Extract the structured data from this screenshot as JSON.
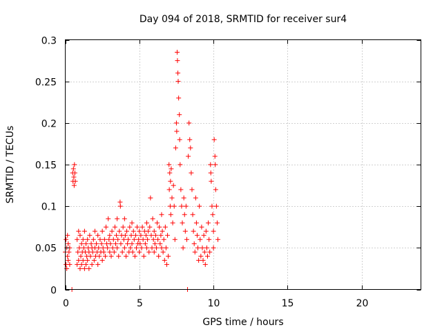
{
  "chart_data": {
    "type": "scatter",
    "title": "Day 094 of 2018, SRMTID for receiver sur4",
    "xlabel": "GPS time / hours",
    "ylabel": "SRMTID / TECUs",
    "xlim": [
      0,
      24
    ],
    "ylim": [
      0,
      0.3
    ],
    "xticks": [
      0,
      5,
      10,
      15,
      20
    ],
    "xtick_labels": [
      "0",
      "5",
      "10",
      "15",
      "20"
    ],
    "yticks": [
      0,
      0.05,
      0.1,
      0.15,
      0.2,
      0.25,
      0.3
    ],
    "ytick_labels": [
      "0",
      "0.05",
      "0.1",
      "0.15",
      "0.2",
      "0.25",
      "0.3"
    ],
    "grid": true,
    "marker": "+",
    "color": "#ff0000",
    "series": [
      {
        "name": "SRMTID",
        "points": [
          [
            0.0,
            0.045
          ],
          [
            0.05,
            0.03
          ],
          [
            0.05,
            0.06
          ],
          [
            0.1,
            0.025
          ],
          [
            0.1,
            0.05
          ],
          [
            0.15,
            0.04
          ],
          [
            0.15,
            0.065
          ],
          [
            0.2,
            0.035
          ],
          [
            0.2,
            0.055
          ],
          [
            0.25,
            0.045
          ],
          [
            0.3,
            0.05
          ],
          [
            0.3,
            0.03
          ],
          [
            0.45,
            0.0
          ],
          [
            0.5,
            0.14
          ],
          [
            0.52,
            0.13
          ],
          [
            0.55,
            0.145
          ],
          [
            0.58,
            0.135
          ],
          [
            0.6,
            0.125
          ],
          [
            0.62,
            0.15
          ],
          [
            0.65,
            0.14
          ],
          [
            0.68,
            0.13
          ],
          [
            0.8,
            0.03
          ],
          [
            0.8,
            0.06
          ],
          [
            0.85,
            0.045
          ],
          [
            0.9,
            0.07
          ],
          [
            0.9,
            0.035
          ],
          [
            0.95,
            0.05
          ],
          [
            1.0,
            0.065
          ],
          [
            1.0,
            0.025
          ],
          [
            1.05,
            0.04
          ],
          [
            1.1,
            0.055
          ],
          [
            1.1,
            0.03
          ],
          [
            1.15,
            0.045
          ],
          [
            1.2,
            0.035
          ],
          [
            1.2,
            0.06
          ],
          [
            1.25,
            0.05
          ],
          [
            1.3,
            0.025
          ],
          [
            1.3,
            0.07
          ],
          [
            1.35,
            0.045
          ],
          [
            1.4,
            0.03
          ],
          [
            1.4,
            0.055
          ],
          [
            1.45,
            0.04
          ],
          [
            1.5,
            0.06
          ],
          [
            1.5,
            0.035
          ],
          [
            1.55,
            0.05
          ],
          [
            1.6,
            0.045
          ],
          [
            1.6,
            0.025
          ],
          [
            1.65,
            0.065
          ],
          [
            1.7,
            0.04
          ],
          [
            1.75,
            0.055
          ],
          [
            1.8,
            0.03
          ],
          [
            1.8,
            0.05
          ],
          [
            1.85,
            0.045
          ],
          [
            1.9,
            0.06
          ],
          [
            1.95,
            0.035
          ],
          [
            2.0,
            0.05
          ],
          [
            2.0,
            0.07
          ],
          [
            2.05,
            0.04
          ],
          [
            2.1,
            0.055
          ],
          [
            2.15,
            0.045
          ],
          [
            2.2,
            0.03
          ],
          [
            2.2,
            0.065
          ],
          [
            2.25,
            0.05
          ],
          [
            2.3,
            0.04
          ],
          [
            2.35,
            0.06
          ],
          [
            2.4,
            0.045
          ],
          [
            2.45,
            0.055
          ],
          [
            2.5,
            0.035
          ],
          [
            2.5,
            0.07
          ],
          [
            2.55,
            0.05
          ],
          [
            2.6,
            0.045
          ],
          [
            2.65,
            0.06
          ],
          [
            2.7,
            0.04
          ],
          [
            2.75,
            0.075
          ],
          [
            2.8,
            0.055
          ],
          [
            2.85,
            0.05
          ],
          [
            2.9,
            0.085
          ],
          [
            2.95,
            0.06
          ],
          [
            3.0,
            0.045
          ],
          [
            3.0,
            0.065
          ],
          [
            3.05,
            0.055
          ],
          [
            3.1,
            0.04
          ],
          [
            3.15,
            0.07
          ],
          [
            3.2,
            0.05
          ],
          [
            3.25,
            0.06
          ],
          [
            3.3,
            0.045
          ],
          [
            3.35,
            0.075
          ],
          [
            3.4,
            0.055
          ],
          [
            3.45,
            0.065
          ],
          [
            3.5,
            0.05
          ],
          [
            3.5,
            0.085
          ],
          [
            3.55,
            0.06
          ],
          [
            3.6,
            0.04
          ],
          [
            3.65,
            0.07
          ],
          [
            3.7,
            0.105
          ],
          [
            3.72,
            0.1
          ],
          [
            3.75,
            0.055
          ],
          [
            3.8,
            0.065
          ],
          [
            3.85,
            0.045
          ],
          [
            3.9,
            0.075
          ],
          [
            3.95,
            0.06
          ],
          [
            4.0,
            0.05
          ],
          [
            4.0,
            0.085
          ],
          [
            4.05,
            0.065
          ],
          [
            4.1,
            0.04
          ],
          [
            4.15,
            0.07
          ],
          [
            4.2,
            0.055
          ],
          [
            4.25,
            0.06
          ],
          [
            4.3,
            0.045
          ],
          [
            4.35,
            0.075
          ],
          [
            4.4,
            0.05
          ],
          [
            4.45,
            0.065
          ],
          [
            4.5,
            0.055
          ],
          [
            4.5,
            0.08
          ],
          [
            4.55,
            0.045
          ],
          [
            4.6,
            0.07
          ],
          [
            4.65,
            0.06
          ],
          [
            4.7,
            0.04
          ],
          [
            4.75,
            0.065
          ],
          [
            4.8,
            0.05
          ],
          [
            4.85,
            0.075
          ],
          [
            4.9,
            0.055
          ],
          [
            4.95,
            0.06
          ],
          [
            5.0,
            0.045
          ],
          [
            5.0,
            0.07
          ],
          [
            5.05,
            0.055
          ],
          [
            5.1,
            0.065
          ],
          [
            5.15,
            0.05
          ],
          [
            5.2,
            0.075
          ],
          [
            5.25,
            0.06
          ],
          [
            5.3,
            0.04
          ],
          [
            5.35,
            0.07
          ],
          [
            5.4,
            0.055
          ],
          [
            5.45,
            0.065
          ],
          [
            5.5,
            0.05
          ],
          [
            5.5,
            0.08
          ],
          [
            5.55,
            0.06
          ],
          [
            5.6,
            0.07
          ],
          [
            5.65,
            0.045
          ],
          [
            5.7,
            0.075
          ],
          [
            5.75,
            0.11
          ],
          [
            5.8,
            0.065
          ],
          [
            5.85,
            0.05
          ],
          [
            5.9,
            0.085
          ],
          [
            5.95,
            0.06
          ],
          [
            6.0,
            0.045
          ],
          [
            6.0,
            0.07
          ],
          [
            6.05,
            0.055
          ],
          [
            6.1,
            0.065
          ],
          [
            6.15,
            0.05
          ],
          [
            6.2,
            0.08
          ],
          [
            6.25,
            0.06
          ],
          [
            6.3,
            0.04
          ],
          [
            6.35,
            0.075
          ],
          [
            6.4,
            0.055
          ],
          [
            6.45,
            0.065
          ],
          [
            6.5,
            0.05
          ],
          [
            6.5,
            0.09
          ],
          [
            6.55,
            0.07
          ],
          [
            6.6,
            0.045
          ],
          [
            6.65,
            0.06
          ],
          [
            6.7,
            0.035
          ],
          [
            6.75,
            0.075
          ],
          [
            6.8,
            0.05
          ],
          [
            6.85,
            0.03
          ],
          [
            6.9,
            0.065
          ],
          [
            6.95,
            0.04
          ],
          [
            7.0,
            0.15
          ],
          [
            7.02,
            0.12
          ],
          [
            7.05,
            0.14
          ],
          [
            7.08,
            0.1
          ],
          [
            7.1,
            0.13
          ],
          [
            7.12,
            0.09
          ],
          [
            7.15,
            0.145
          ],
          [
            7.2,
            0.11
          ],
          [
            7.25,
            0.08
          ],
          [
            7.3,
            0.125
          ],
          [
            7.35,
            0.1
          ],
          [
            7.4,
            0.06
          ],
          [
            7.45,
            0.17
          ],
          [
            7.5,
            0.2
          ],
          [
            7.52,
            0.19
          ],
          [
            7.55,
            0.285
          ],
          [
            7.57,
            0.275
          ],
          [
            7.6,
            0.26
          ],
          [
            7.62,
            0.25
          ],
          [
            7.65,
            0.23
          ],
          [
            7.7,
            0.21
          ],
          [
            7.72,
            0.18
          ],
          [
            7.75,
            0.15
          ],
          [
            7.8,
            0.12
          ],
          [
            7.85,
            0.1
          ],
          [
            7.9,
            0.08
          ],
          [
            7.95,
            0.05
          ],
          [
            8.0,
            0.11
          ],
          [
            8.05,
            0.09
          ],
          [
            8.1,
            0.07
          ],
          [
            8.15,
            0.1
          ],
          [
            8.2,
            0.06
          ],
          [
            8.25,
            0.0
          ],
          [
            8.3,
            0.16
          ],
          [
            8.35,
            0.2
          ],
          [
            8.4,
            0.18
          ],
          [
            8.45,
            0.17
          ],
          [
            8.5,
            0.14
          ],
          [
            8.55,
            0.12
          ],
          [
            8.6,
            0.09
          ],
          [
            8.65,
            0.07
          ],
          [
            8.7,
            0.055
          ],
          [
            8.75,
            0.045
          ],
          [
            8.8,
            0.11
          ],
          [
            8.85,
            0.08
          ],
          [
            8.9,
            0.065
          ],
          [
            8.95,
            0.05
          ],
          [
            9.0,
            0.035
          ],
          [
            9.05,
            0.1
          ],
          [
            9.1,
            0.06
          ],
          [
            9.15,
            0.04
          ],
          [
            9.2,
            0.075
          ],
          [
            9.25,
            0.05
          ],
          [
            9.3,
            0.035
          ],
          [
            9.35,
            0.065
          ],
          [
            9.4,
            0.045
          ],
          [
            9.45,
            0.03
          ],
          [
            9.5,
            0.07
          ],
          [
            9.55,
            0.05
          ],
          [
            9.6,
            0.04
          ],
          [
            9.65,
            0.08
          ],
          [
            9.7,
            0.06
          ],
          [
            9.75,
            0.045
          ],
          [
            9.8,
            0.15
          ],
          [
            9.82,
            0.14
          ],
          [
            9.85,
            0.13
          ],
          [
            9.9,
            0.1
          ],
          [
            9.95,
            0.09
          ],
          [
            10.0,
            0.07
          ],
          [
            10.0,
            0.05
          ],
          [
            10.05,
            0.18
          ],
          [
            10.1,
            0.16
          ],
          [
            10.12,
            0.15
          ],
          [
            10.15,
            0.12
          ],
          [
            10.2,
            0.1
          ],
          [
            10.25,
            0.08
          ],
          [
            10.3,
            0.06
          ]
        ]
      }
    ]
  }
}
